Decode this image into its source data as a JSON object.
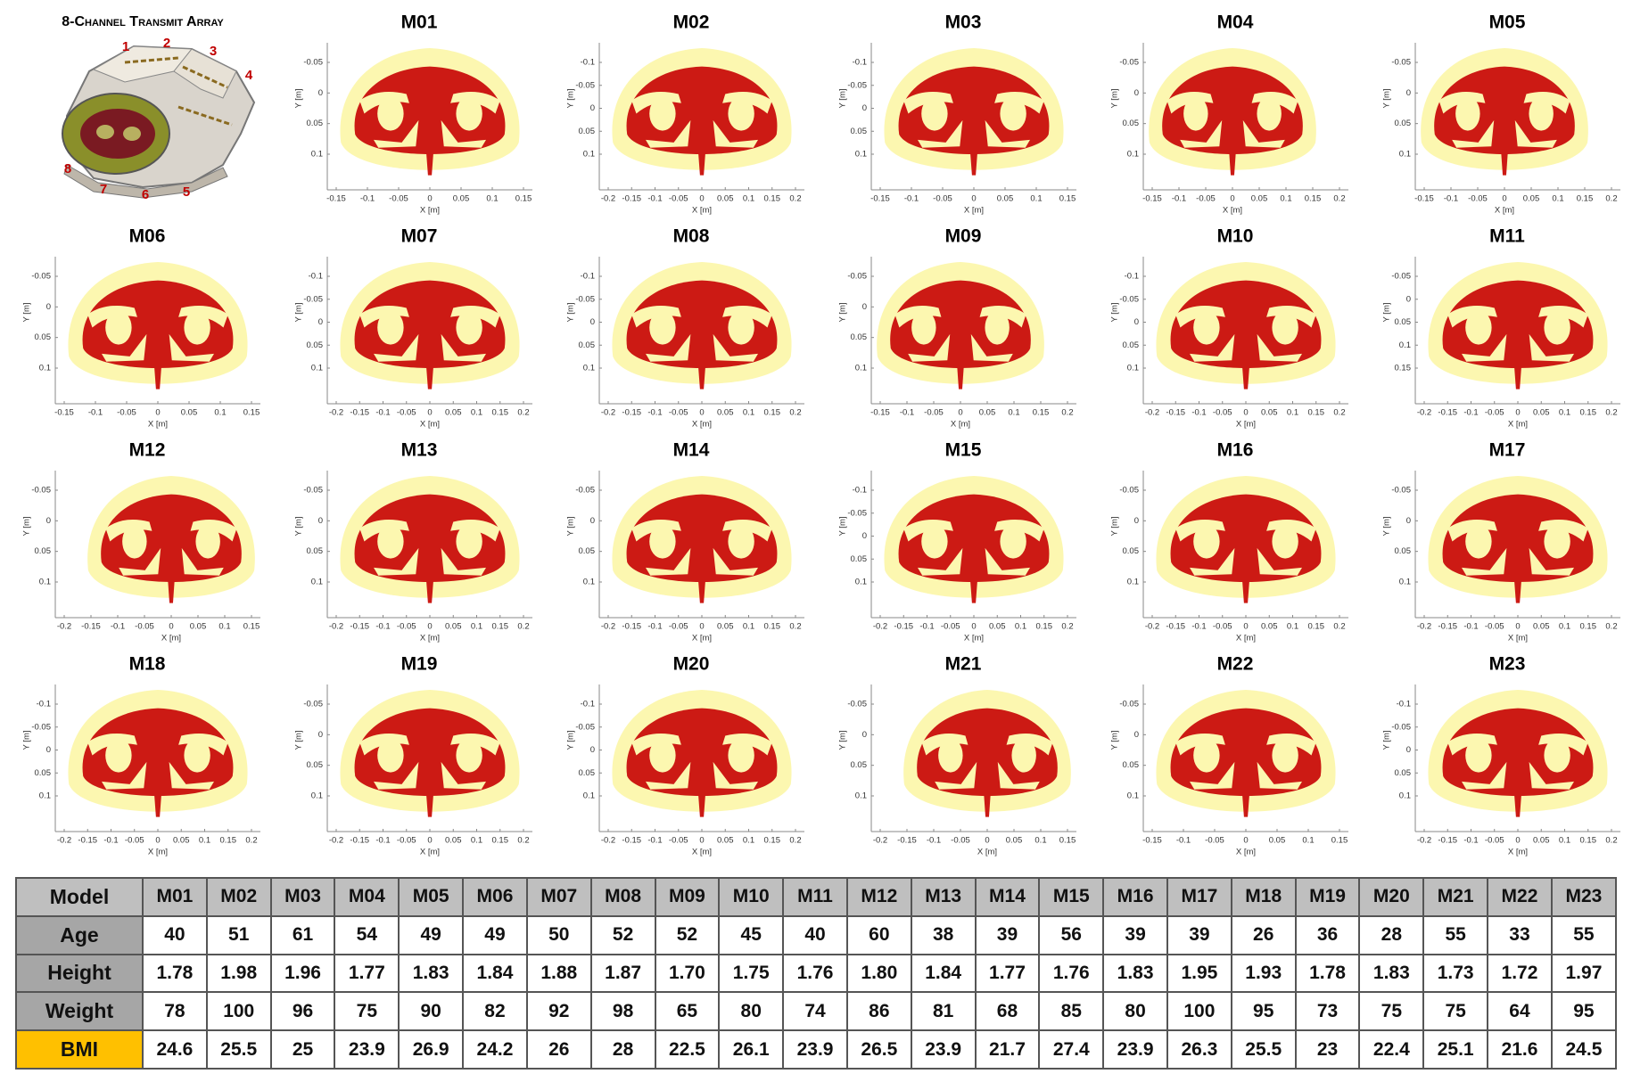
{
  "figure": {
    "title": "8-Channel Transmit Array",
    "channels": [
      "1",
      "2",
      "3",
      "4",
      "5",
      "6",
      "7",
      "8"
    ],
    "axis_labels": {
      "x": "X [m]",
      "y": "Y [m]"
    },
    "panels": [
      {
        "title": "M01",
        "xticks": [
          -0.15,
          -0.1,
          -0.05,
          0,
          0.05,
          0.1,
          0.15
        ],
        "yticks": [
          -0.05,
          0,
          0.05,
          0.1
        ]
      },
      {
        "title": "M02",
        "xticks": [
          -0.2,
          -0.15,
          -0.1,
          -0.05,
          0,
          0.05,
          0.1,
          0.15,
          0.2
        ],
        "yticks": [
          -0.1,
          -0.05,
          0,
          0.05,
          0.1
        ]
      },
      {
        "title": "M03",
        "xticks": [
          -0.15,
          -0.1,
          -0.05,
          0,
          0.05,
          0.1,
          0.15
        ],
        "yticks": [
          -0.1,
          -0.05,
          0,
          0.05,
          0.1
        ]
      },
      {
        "title": "M04",
        "xticks": [
          -0.15,
          -0.1,
          -0.05,
          0,
          0.05,
          0.1,
          0.15,
          0.2
        ],
        "yticks": [
          -0.05,
          0,
          0.05,
          0.1
        ]
      },
      {
        "title": "M05",
        "xticks": [
          -0.15,
          -0.1,
          -0.05,
          0,
          0.05,
          0.1,
          0.15,
          0.2
        ],
        "yticks": [
          -0.05,
          0,
          0.05,
          0.1
        ]
      },
      {
        "title": "M06",
        "xticks": [
          -0.15,
          -0.1,
          -0.05,
          0,
          0.05,
          0.1,
          0.15
        ],
        "yticks": [
          -0.05,
          0,
          0.05,
          0.1
        ]
      },
      {
        "title": "M07",
        "xticks": [
          -0.2,
          -0.15,
          -0.1,
          -0.05,
          0,
          0.05,
          0.1,
          0.15,
          0.2
        ],
        "yticks": [
          -0.1,
          -0.05,
          0,
          0.05,
          0.1
        ]
      },
      {
        "title": "M08",
        "xticks": [
          -0.2,
          -0.15,
          -0.1,
          -0.05,
          0,
          0.05,
          0.1,
          0.15,
          0.2
        ],
        "yticks": [
          -0.1,
          -0.05,
          0,
          0.05,
          0.1
        ]
      },
      {
        "title": "M09",
        "xticks": [
          -0.15,
          -0.1,
          -0.05,
          0,
          0.05,
          0.1,
          0.15,
          0.2
        ],
        "yticks": [
          -0.05,
          0,
          0.05,
          0.1
        ]
      },
      {
        "title": "M10",
        "xticks": [
          -0.2,
          -0.15,
          -0.1,
          -0.05,
          0,
          0.05,
          0.1,
          0.15,
          0.2
        ],
        "yticks": [
          -0.1,
          -0.05,
          0,
          0.05,
          0.1
        ]
      },
      {
        "title": "M11",
        "xticks": [
          -0.2,
          -0.15,
          -0.1,
          -0.05,
          0,
          0.05,
          0.1,
          0.15,
          0.2
        ],
        "yticks": [
          -0.05,
          0,
          0.05,
          0.1,
          0.15
        ]
      },
      {
        "title": "M12",
        "xticks": [
          -0.2,
          -0.15,
          -0.1,
          -0.05,
          0,
          0.05,
          0.1,
          0.15
        ],
        "yticks": [
          -0.05,
          0,
          0.05,
          0.1
        ]
      },
      {
        "title": "M13",
        "xticks": [
          -0.2,
          -0.15,
          -0.1,
          -0.05,
          0,
          0.05,
          0.1,
          0.15,
          0.2
        ],
        "yticks": [
          -0.05,
          0,
          0.05,
          0.1
        ]
      },
      {
        "title": "M14",
        "xticks": [
          -0.2,
          -0.15,
          -0.1,
          -0.05,
          0,
          0.05,
          0.1,
          0.15,
          0.2
        ],
        "yticks": [
          -0.05,
          0,
          0.05,
          0.1
        ]
      },
      {
        "title": "M15",
        "xticks": [
          -0.2,
          -0.15,
          -0.1,
          -0.05,
          0,
          0.05,
          0.1,
          0.15,
          0.2
        ],
        "yticks": [
          -0.1,
          -0.05,
          0,
          0.05,
          0.1
        ]
      },
      {
        "title": "M16",
        "xticks": [
          -0.2,
          -0.15,
          -0.1,
          -0.05,
          0,
          0.05,
          0.1,
          0.15,
          0.2
        ],
        "yticks": [
          -0.05,
          0,
          0.05,
          0.1
        ]
      },
      {
        "title": "M17",
        "xticks": [
          -0.2,
          -0.15,
          -0.1,
          -0.05,
          0,
          0.05,
          0.1,
          0.15,
          0.2
        ],
        "yticks": [
          -0.05,
          0,
          0.05,
          0.1
        ]
      },
      {
        "title": "M18",
        "xticks": [
          -0.2,
          -0.15,
          -0.1,
          -0.05,
          0,
          0.05,
          0.1,
          0.15,
          0.2
        ],
        "yticks": [
          -0.1,
          -0.05,
          0,
          0.05,
          0.1
        ]
      },
      {
        "title": "M19",
        "xticks": [
          -0.2,
          -0.15,
          -0.1,
          -0.05,
          0,
          0.05,
          0.1,
          0.15,
          0.2
        ],
        "yticks": [
          -0.05,
          0,
          0.05,
          0.1
        ]
      },
      {
        "title": "M20",
        "xticks": [
          -0.2,
          -0.15,
          -0.1,
          -0.05,
          0,
          0.05,
          0.1,
          0.15,
          0.2
        ],
        "yticks": [
          -0.1,
          -0.05,
          0,
          0.05,
          0.1
        ]
      },
      {
        "title": "M21",
        "xticks": [
          -0.2,
          -0.15,
          -0.1,
          -0.05,
          0,
          0.05,
          0.1,
          0.15
        ],
        "yticks": [
          -0.05,
          0,
          0.05,
          0.1
        ]
      },
      {
        "title": "M22",
        "xticks": [
          -0.15,
          -0.1,
          -0.05,
          0,
          0.05,
          0.1,
          0.15
        ],
        "yticks": [
          -0.05,
          0,
          0.05,
          0.1
        ]
      },
      {
        "title": "M23",
        "xticks": [
          -0.2,
          -0.15,
          -0.1,
          -0.05,
          0,
          0.05,
          0.1,
          0.15,
          0.2
        ],
        "yticks": [
          -0.1,
          -0.05,
          0,
          0.05,
          0.1
        ]
      }
    ]
  },
  "table": {
    "header": [
      "Model",
      "M01",
      "M02",
      "M03",
      "M04",
      "M05",
      "M06",
      "M07",
      "M08",
      "M09",
      "M10",
      "M11",
      "M12",
      "M13",
      "M14",
      "M15",
      "M16",
      "M17",
      "M18",
      "M19",
      "M20",
      "M21",
      "M22",
      "M23"
    ],
    "rows": [
      [
        "Age",
        "40",
        "51",
        "61",
        "54",
        "49",
        "49",
        "50",
        "52",
        "52",
        "45",
        "40",
        "60",
        "38",
        "39",
        "56",
        "39",
        "39",
        "26",
        "36",
        "28",
        "55",
        "33",
        "55"
      ],
      [
        "Height",
        "1.78",
        "1.98",
        "1.96",
        "1.77",
        "1.83",
        "1.84",
        "1.88",
        "1.87",
        "1.70",
        "1.75",
        "1.76",
        "1.80",
        "1.84",
        "1.77",
        "1.76",
        "1.83",
        "1.95",
        "1.93",
        "1.78",
        "1.83",
        "1.73",
        "1.72",
        "1.97"
      ],
      [
        "Weight",
        "78",
        "100",
        "96",
        "75",
        "90",
        "82",
        "92",
        "98",
        "65",
        "80",
        "74",
        "86",
        "81",
        "68",
        "85",
        "80",
        "100",
        "95",
        "73",
        "75",
        "75",
        "64",
        "95"
      ],
      [
        "BMI",
        "24.6",
        "25.5",
        "25",
        "23.9",
        "26.9",
        "24.2",
        "26",
        "28",
        "22.5",
        "26.1",
        "23.9",
        "26.5",
        "23.9",
        "21.7",
        "27.4",
        "23.9",
        "26.3",
        "25.5",
        "23",
        "22.4",
        "25.1",
        "21.6",
        "24.5"
      ]
    ]
  }
}
